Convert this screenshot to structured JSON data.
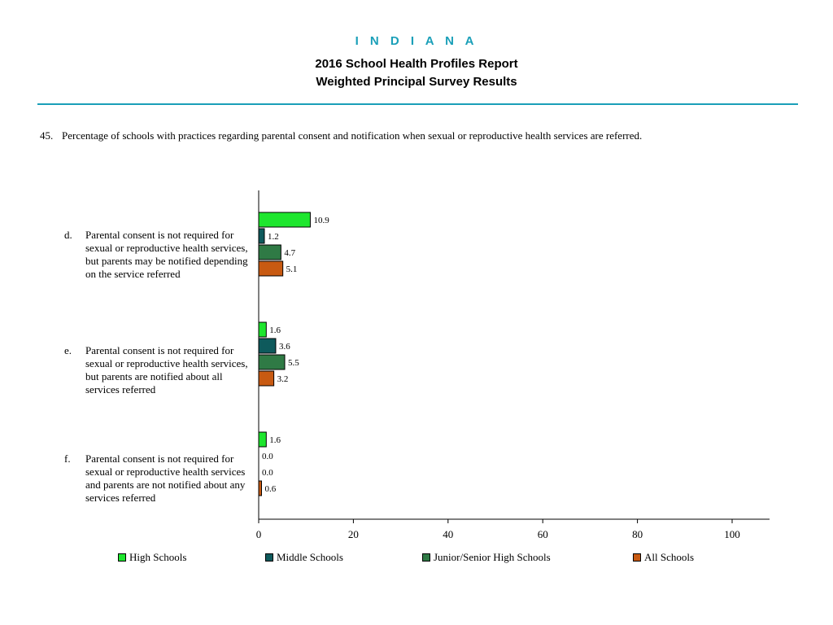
{
  "header": {
    "state": "I N D I A N A",
    "title": "2016 School Health Profiles Report",
    "subtitle": "Weighted Principal Survey Results"
  },
  "question": {
    "number": "45.",
    "text": "Percentage of schools with practices regarding parental consent and notification when sexual or reproductive health services are referred."
  },
  "chart_data": {
    "type": "bar",
    "orientation": "horizontal",
    "categories": [
      {
        "letter": "d.",
        "lines": [
          "Parental consent is not required for",
          "sexual or reproductive health services,",
          "but parents may be notified depending",
          "on the service referred"
        ]
      },
      {
        "letter": "e.",
        "lines": [
          "Parental consent is not required for",
          "sexual or reproductive health services,",
          "but parents are notified about all",
          "services referred"
        ]
      },
      {
        "letter": "f.",
        "lines": [
          "Parental consent is not required for",
          "sexual or reproductive health services",
          "and parents are not notified about any",
          "services referred"
        ]
      }
    ],
    "series": [
      {
        "name": "High Schools",
        "color": "#1ee62e",
        "values": [
          10.9,
          1.6,
          1.6
        ],
        "labels": [
          "10.9",
          "1.6",
          "1.6"
        ]
      },
      {
        "name": "Middle Schools",
        "color": "#0e5a5c",
        "values": [
          1.2,
          3.6,
          0.0
        ],
        "labels": [
          "1.2",
          "3.6",
          "0.0"
        ]
      },
      {
        "name": "Junior/Senior High Schools",
        "color": "#2f7a45",
        "values": [
          4.7,
          5.5,
          0.0
        ],
        "labels": [
          "4.7",
          "5.5",
          "0.0"
        ]
      },
      {
        "name": "All Schools",
        "color": "#c85a12",
        "values": [
          5.1,
          3.2,
          0.6
        ],
        "labels": [
          "5.1",
          "3.2",
          "0.6"
        ]
      }
    ],
    "xlim": [
      0,
      108
    ],
    "xticks": [
      "0",
      "20",
      "40",
      "60",
      "80",
      "100"
    ],
    "grid": false,
    "legend_position": "bottom"
  }
}
